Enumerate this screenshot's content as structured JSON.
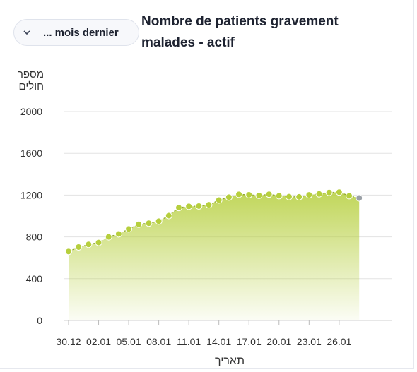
{
  "dropdown": {
    "label": "... mois dernier"
  },
  "chart_data": {
    "type": "area",
    "title": "Nombre de patients gravement malades - actif",
    "ylabel_lines": [
      "מספר",
      "חולים"
    ],
    "xlabel": "תאריך",
    "ylim": [
      0,
      2000
    ],
    "yticks": [
      "0",
      "400",
      "800",
      "1200",
      "1600",
      "2000"
    ],
    "ytick_values": [
      0,
      400,
      800,
      1200,
      1600,
      2000
    ],
    "xticks": [
      "30.12",
      "02.01",
      "05.01",
      "08.01",
      "11.01",
      "14.01",
      "17.01",
      "20.01",
      "23.01",
      "26.01"
    ],
    "x": [
      "30.12",
      "31.12",
      "01.01",
      "02.01",
      "03.01",
      "04.01",
      "05.01",
      "06.01",
      "07.01",
      "08.01",
      "09.01",
      "10.01",
      "11.01",
      "12.01",
      "13.01",
      "14.01",
      "15.01",
      "16.01",
      "17.01",
      "18.01",
      "19.01",
      "20.01",
      "21.01",
      "22.01",
      "23.01",
      "24.01",
      "25.01",
      "26.01",
      "27.01",
      "28.01"
    ],
    "values": [
      660,
      703,
      728,
      746,
      800,
      828,
      876,
      921,
      931,
      950,
      1003,
      1080,
      1092,
      1095,
      1107,
      1152,
      1180,
      1207,
      1203,
      1197,
      1208,
      1193,
      1185,
      1183,
      1202,
      1211,
      1225,
      1228,
      1193,
      1172
    ],
    "last_point_color": "#9aa0a6",
    "series_color": "#b6cf3d",
    "grid": true
  }
}
